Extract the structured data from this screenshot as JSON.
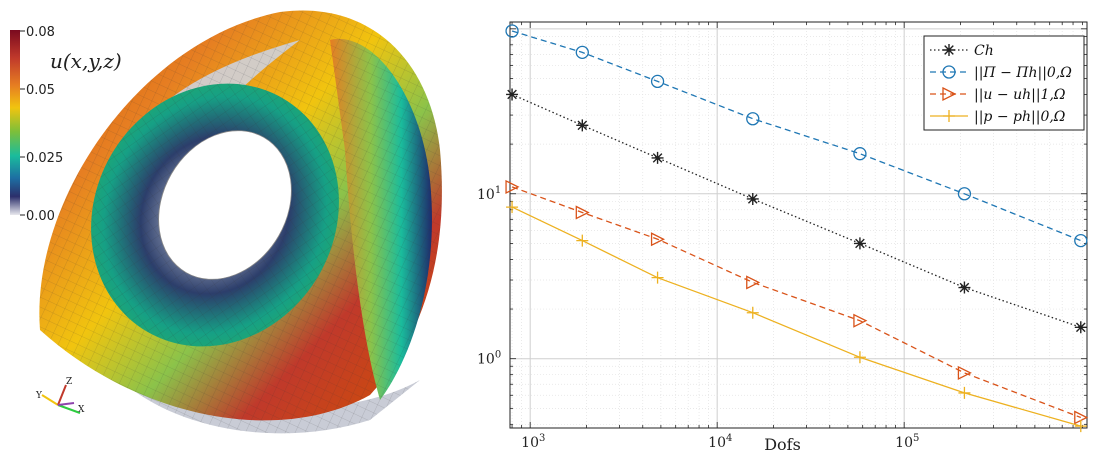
{
  "colorbar": {
    "title": "u(x,y,z)",
    "ticks": [
      "0.08",
      "0.05",
      "0.025",
      "0.00"
    ],
    "tick_values": [
      0.08,
      0.05,
      0.025,
      0.0
    ]
  },
  "triad": {
    "y": "Y",
    "x": "X",
    "z": "Z"
  },
  "chart_data": {
    "type": "line",
    "title": "",
    "xlabel": "Dofs",
    "ylabel": "",
    "xscale": "log",
    "yscale": "log",
    "xlim": [
      780,
      950000
    ],
    "ylim": [
      0.38,
      110
    ],
    "grid": true,
    "legend_position": "top-right",
    "x": [
      800,
      1900,
      4800,
      15500,
      58000,
      210000,
      880000
    ],
    "series": [
      {
        "name": "Ch",
        "color": "#222222",
        "dash": "dotted",
        "marker": "asterisk",
        "values": [
          40,
          26,
          16.5,
          9.3,
          5.0,
          2.7,
          1.55
        ]
      },
      {
        "name": "||Π − Πh||0,Ω",
        "color": "#1f77b4",
        "dash": "dashed",
        "marker": "circle",
        "values": [
          97,
          72,
          48,
          28.5,
          17.5,
          10.0,
          5.2
        ]
      },
      {
        "name": "||u − uh||1,Ω",
        "color": "#d95319",
        "dash": "dashed",
        "marker": "triangle-right",
        "values": [
          11,
          7.7,
          5.3,
          2.9,
          1.7,
          0.82,
          0.44
        ]
      },
      {
        "name": "||p − ph||0,Ω",
        "color": "#edb120",
        "dash": "solid",
        "marker": "plus",
        "values": [
          8.3,
          5.2,
          3.1,
          1.9,
          1.02,
          0.62,
          0.39
        ]
      }
    ],
    "xticks": [
      {
        "value": 1000,
        "base": "10",
        "exp": "3"
      },
      {
        "value": 10000,
        "base": "10",
        "exp": "4"
      },
      {
        "value": 100000,
        "base": "10",
        "exp": "5"
      }
    ],
    "yticks": [
      {
        "value": 1,
        "base": "10",
        "exp": "0"
      },
      {
        "value": 10,
        "base": "10",
        "exp": "1"
      }
    ]
  }
}
